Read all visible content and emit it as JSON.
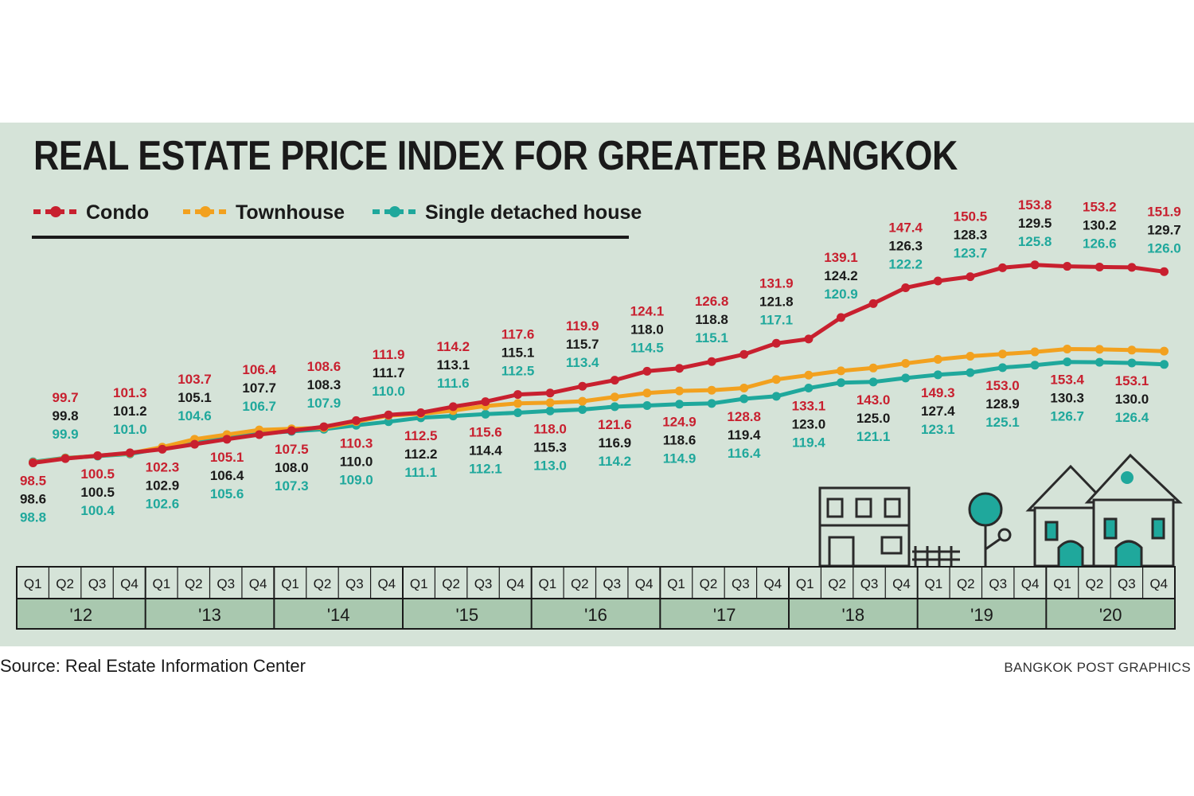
{
  "title": "REAL ESTATE PRICE INDEX FOR GREATER BANGKOK",
  "source": "Source: Real Estate Information Center",
  "credit": "BANGKOK POST GRAPHICS",
  "colors": {
    "condo": "#c8202f",
    "townhouse": "#f2a11f",
    "single": "#1fa89c",
    "text": "#1a1a1a",
    "background": "#d5e3d8",
    "axis_band": "#a9c8af"
  },
  "chart_data": {
    "type": "line",
    "title": "REAL ESTATE PRICE INDEX FOR GREATER BANGKOK",
    "legend_position": "top-left",
    "years": [
      "'12",
      "'13",
      "'14",
      "'15",
      "'16",
      "'17",
      "'18",
      "'19",
      "'20"
    ],
    "quarters": [
      "Q1",
      "Q2",
      "Q3",
      "Q4"
    ],
    "categories": [
      "Q1 2012",
      "Q2 2012",
      "Q3 2012",
      "Q4 2012",
      "Q1 2013",
      "Q2 2013",
      "Q3 2013",
      "Q4 2013",
      "Q1 2014",
      "Q2 2014",
      "Q3 2014",
      "Q4 2014",
      "Q1 2015",
      "Q2 2015",
      "Q3 2015",
      "Q4 2015",
      "Q1 2016",
      "Q2 2016",
      "Q3 2016",
      "Q4 2016",
      "Q1 2017",
      "Q2 2017",
      "Q3 2017",
      "Q4 2017",
      "Q1 2018",
      "Q2 2018",
      "Q3 2018",
      "Q4 2018",
      "Q1 2019",
      "Q2 2019",
      "Q3 2019",
      "Q4 2019",
      "Q1 2020",
      "Q2 2020",
      "Q3 2020",
      "Q4 2020"
    ],
    "series": [
      {
        "name": "Condo",
        "key": "condo",
        "values": [
          98.5,
          99.7,
          100.5,
          101.3,
          102.3,
          103.7,
          105.1,
          106.4,
          107.5,
          108.6,
          110.3,
          111.9,
          112.5,
          114.2,
          115.6,
          117.6,
          118.0,
          119.9,
          121.6,
          124.1,
          124.9,
          126.8,
          128.8,
          131.9,
          133.1,
          139.1,
          143.0,
          147.4,
          149.3,
          150.5,
          153.0,
          153.8,
          153.4,
          153.2,
          153.1,
          151.9
        ]
      },
      {
        "name": "Townhouse",
        "key": "townhouse",
        "values": [
          98.6,
          99.8,
          100.5,
          101.2,
          102.9,
          105.1,
          106.4,
          107.7,
          108.0,
          108.3,
          110.0,
          111.7,
          112.2,
          113.1,
          114.4,
          115.1,
          115.3,
          115.7,
          116.9,
          118.0,
          118.6,
          118.8,
          119.4,
          121.8,
          123.0,
          124.2,
          125.0,
          126.3,
          127.4,
          128.3,
          128.9,
          129.5,
          130.3,
          130.2,
          130.0,
          129.7
        ]
      },
      {
        "name": "Single detached house",
        "key": "single",
        "values": [
          98.8,
          99.9,
          100.4,
          101.0,
          102.6,
          104.6,
          105.6,
          106.7,
          107.3,
          107.9,
          109.0,
          110.0,
          111.1,
          111.6,
          112.1,
          112.5,
          113.0,
          113.4,
          114.2,
          114.5,
          114.9,
          115.1,
          116.4,
          117.1,
          119.4,
          120.9,
          121.1,
          122.2,
          123.1,
          123.7,
          125.1,
          125.8,
          126.7,
          126.6,
          126.4,
          126.0
        ]
      }
    ],
    "labels": {
      "condo": [
        "98.5",
        "99.7",
        "100.5",
        "101.3",
        "102.3",
        "103.7",
        "105.1",
        "106.4",
        "107.5",
        "108.6",
        "110.3",
        "111.9",
        "112.5",
        "114.2",
        "115.6",
        "117.6",
        "118.0",
        "119.9",
        "121.6",
        "124.1",
        "124.9",
        "126.8",
        "128.8",
        "131.9",
        "133.1",
        "139.1",
        "143.0",
        "147.4",
        "149.3",
        "150.5",
        "153.0",
        "153.8",
        "153.4",
        "153.2",
        "153.1",
        "151.9"
      ],
      "townhouse": [
        "98.6",
        "99.8",
        "100.5",
        "101.2",
        "102.9",
        "105.1",
        "106.4",
        "107.7",
        "108.0",
        "108.3",
        "110.0",
        "111.7",
        "112.2",
        "113.1",
        "114.4",
        "115.1",
        "115.3",
        "115.7",
        "116.9",
        "118.0",
        "118.6",
        "118.8",
        "119.4",
        "121.8",
        "123.0",
        "124.2",
        "125.0",
        "126.3",
        "127.4",
        "128.3",
        "128.9",
        "129.5",
        "130.3",
        "130.2",
        "130.0",
        "129.7"
      ],
      "single": [
        "98.8",
        "99.9",
        "100.4",
        "101.0",
        "102.6",
        "104.6",
        "105.6",
        "106.7",
        "107.3",
        "107.9",
        "109.0",
        "110.0",
        "111.1",
        "111.6",
        "112.1",
        "112.5",
        "113.0",
        "113.4",
        "114.2",
        "114.5",
        "114.9",
        "115.1",
        "116.4",
        "117.1",
        "119.4",
        "120.9",
        "121.1",
        "122.2",
        "123.1",
        "123.7",
        "125.1",
        "125.8",
        "126.7",
        "126.6",
        "126.4",
        "126.0"
      ]
    },
    "ylim": [
      96,
      156
    ],
    "grid": false
  }
}
